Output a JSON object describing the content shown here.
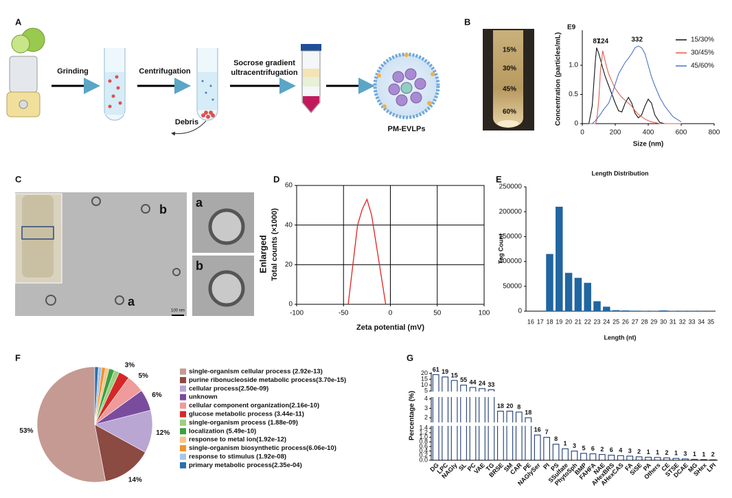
{
  "panel_letters": [
    "A",
    "B",
    "C",
    "D",
    "E",
    "F",
    "G"
  ],
  "diagram_a": {
    "step_1": "Grinding",
    "step_2": "Centrifugation",
    "step_3_line_1": "Socrose gradient",
    "step_3_line_2": "ultracentrifugation",
    "debris": "Debris",
    "product": "PM-EVLPs"
  },
  "photo_b": {
    "layers": [
      "15%",
      "30%",
      "45%",
      "60%"
    ]
  },
  "images_c": {
    "main_b": "b",
    "main_a": "a",
    "enlarged": "Enlarged",
    "inset_a": "a",
    "inset_b": "b",
    "scale_bar": "100 nm"
  },
  "chart_data": [
    {
      "type": "line",
      "unit_label": "E9",
      "xlabel": "Size (nm)",
      "ylabel": "Concentration (particles/mL)",
      "x": [
        40,
        60,
        80,
        87,
        100,
        110,
        124,
        140,
        160,
        180,
        200,
        220,
        240,
        260,
        280,
        300,
        320,
        340,
        360,
        380,
        400,
        420,
        440,
        470,
        500,
        550,
        600
      ],
      "series": [
        {
          "name": "15/30%",
          "color": "#111111",
          "values": [
            0,
            0.3,
            1.1,
            1.3,
            1.2,
            1.1,
            0.95,
            0.8,
            0.65,
            0.5,
            0.35,
            0.22,
            0.2,
            0.35,
            0.45,
            0.35,
            0.18,
            0.1,
            0.15,
            0.3,
            0.42,
            0.35,
            0.15,
            0.02,
            0,
            0,
            0
          ]
        },
        {
          "name": "30/45%",
          "color": "#e8574b",
          "values": [
            0,
            0,
            0,
            0.05,
            0.4,
            0.9,
            1.25,
            1.05,
            0.85,
            0.72,
            0.6,
            0.52,
            0.45,
            0.4,
            0.35,
            0.3,
            0.22,
            0.16,
            0.12,
            0.08,
            0.05,
            0.03,
            0.02,
            0,
            0,
            0,
            0
          ]
        },
        {
          "name": "45/60%",
          "color": "#4a72c0",
          "values": [
            0,
            0,
            0.05,
            0.08,
            0.12,
            0.16,
            0.22,
            0.28,
            0.35,
            0.5,
            0.68,
            0.85,
            0.95,
            1.05,
            1.12,
            1.2,
            1.3,
            1.33,
            1.3,
            1.2,
            1.0,
            0.8,
            0.65,
            0.45,
            0.3,
            0.12,
            0.03
          ]
        }
      ],
      "xlim": [
        0,
        800
      ],
      "xticks": [
        0,
        200,
        400,
        600,
        800
      ],
      "ylim": [
        0,
        1.6
      ],
      "yticks": [
        0,
        0.5,
        {
          "value": 1,
          "label": "1.0"
        }
      ],
      "annotations": [
        {
          "text": "87",
          "x": 87,
          "y": 1.3
        },
        {
          "text": "124",
          "x": 124,
          "y": 1.3
        },
        {
          "text": "332",
          "x": 332,
          "y": 1.33
        }
      ],
      "legend": "upper right"
    },
    {
      "type": "line",
      "xlabel": "Zeta potential (mV)",
      "ylabel": "Total counts (×1000)",
      "x": [
        -45,
        -40,
        -35,
        -30,
        -25,
        -20,
        -15,
        -10,
        -5
      ],
      "series": [
        {
          "color": "#e02020",
          "values": [
            0,
            20,
            40,
            48,
            53,
            45,
            30,
            15,
            0
          ]
        }
      ],
      "xlim": [
        -100,
        100
      ],
      "xticks": [
        -100,
        -50,
        0,
        50,
        100
      ],
      "ylim": [
        0,
        60
      ],
      "yticks": [
        0,
        20,
        40,
        60
      ],
      "grid": true
    },
    {
      "type": "bar",
      "title": "Length Distribution",
      "xlabel": "Length (nt)",
      "ylabel": "Tag Count",
      "categories": [
        "16",
        "17",
        "18",
        "19",
        "20",
        "21",
        "22",
        "23",
        "24",
        "25",
        "26",
        "27",
        "28",
        "29",
        "30",
        "31",
        "32",
        "33",
        "34",
        "35"
      ],
      "values": [
        0,
        0,
        115000,
        210000,
        77000,
        67000,
        57000,
        20000,
        9000,
        2000,
        1500,
        1000,
        800,
        500,
        1500,
        500,
        300,
        300,
        200,
        200
      ],
      "color": "#2166a0",
      "ylim": [
        0,
        250000
      ],
      "yticks": [
        0,
        50000,
        100000,
        150000,
        200000,
        250000
      ]
    },
    {
      "type": "pie",
      "categories": [
        "single-organism cellular process (2.92e-13)",
        "purine ribonucleoside metabolic process(3.70e-15)",
        "cellular process(2.50e-09)",
        "unknown",
        "cellular component organization(2.16e-10)",
        "glucose metabolic process (3.44e-11)",
        "single-organism process (1.88e-09)",
        "localization (5.49e-10)",
        "response to metal ion(1.92e-12)",
        "single-organism biosynthetic process(6.06e-10)",
        "response to stimulus (1.92e-08)",
        "primary metabolic process(2.35e-04)"
      ],
      "values": [
        53,
        14,
        12,
        6,
        5,
        3,
        1.5,
        1.5,
        1,
        1,
        1,
        1
      ],
      "value_labels": [
        "53%",
        "14%",
        "12%",
        "6%",
        "5%",
        "3%",
        null,
        null,
        null,
        null,
        null,
        null
      ],
      "colors": [
        "#c49a93",
        "#8b4a42",
        "#b9a6d3",
        "#7a4c9e",
        "#f09b9b",
        "#d62728",
        "#9ad07f",
        "#3aa043",
        "#f7c58a",
        "#f2912e",
        "#a7c5e5",
        "#2a6fad"
      ]
    },
    {
      "type": "broken_bar",
      "ylabel": "Percentage (%)",
      "categories": [
        "DG",
        "LPC",
        "NAGly",
        "SL",
        "PC",
        "VAE",
        "TG",
        "BRSE",
        "SM",
        "CAR",
        "PE",
        "NAGlySer",
        "PI",
        "PS",
        "SSulfate",
        "PhytoSph",
        "BMP",
        "FAHFA",
        "NAE",
        "AHexBRS",
        "AHexCAS",
        "FA",
        "SiSE",
        "PA",
        "Others",
        "CE",
        "STSE",
        "DCAE",
        "MG",
        "SHex",
        "LPI"
      ],
      "values": [
        19,
        17,
        14,
        10,
        8,
        7,
        6,
        2.7,
        2.7,
        2.6,
        2.0,
        1.1,
        1.0,
        0.7,
        0.5,
        0.4,
        0.3,
        0.28,
        0.25,
        0.22,
        0.2,
        0.18,
        0.15,
        0.13,
        0.12,
        0.1,
        0.08,
        0.06,
        0.04,
        0.03,
        0.02
      ],
      "counts": [
        61,
        19,
        15,
        55,
        44,
        24,
        33,
        18,
        20,
        8,
        18,
        16,
        7,
        8,
        1,
        3,
        5,
        6,
        2,
        6,
        4,
        3,
        2,
        1,
        1,
        2,
        1,
        3,
        1,
        1,
        2
      ],
      "color": "#1f3b73",
      "segments": [
        {
          "ylim": [
            0,
            1.5
          ],
          "yticks": [
            {
              "value": 0,
              "label": "0.0"
            },
            0.2,
            0.4,
            0.6,
            0.8,
            {
              "value": 1,
              "label": "1.0"
            },
            1.2,
            1.4
          ]
        },
        {
          "ylim": [
            1.5,
            4.2
          ],
          "yticks": [
            2,
            3,
            4
          ]
        },
        {
          "ylim": [
            4.5,
            21
          ],
          "yticks": [
            5,
            10,
            15,
            20
          ]
        }
      ]
    }
  ]
}
